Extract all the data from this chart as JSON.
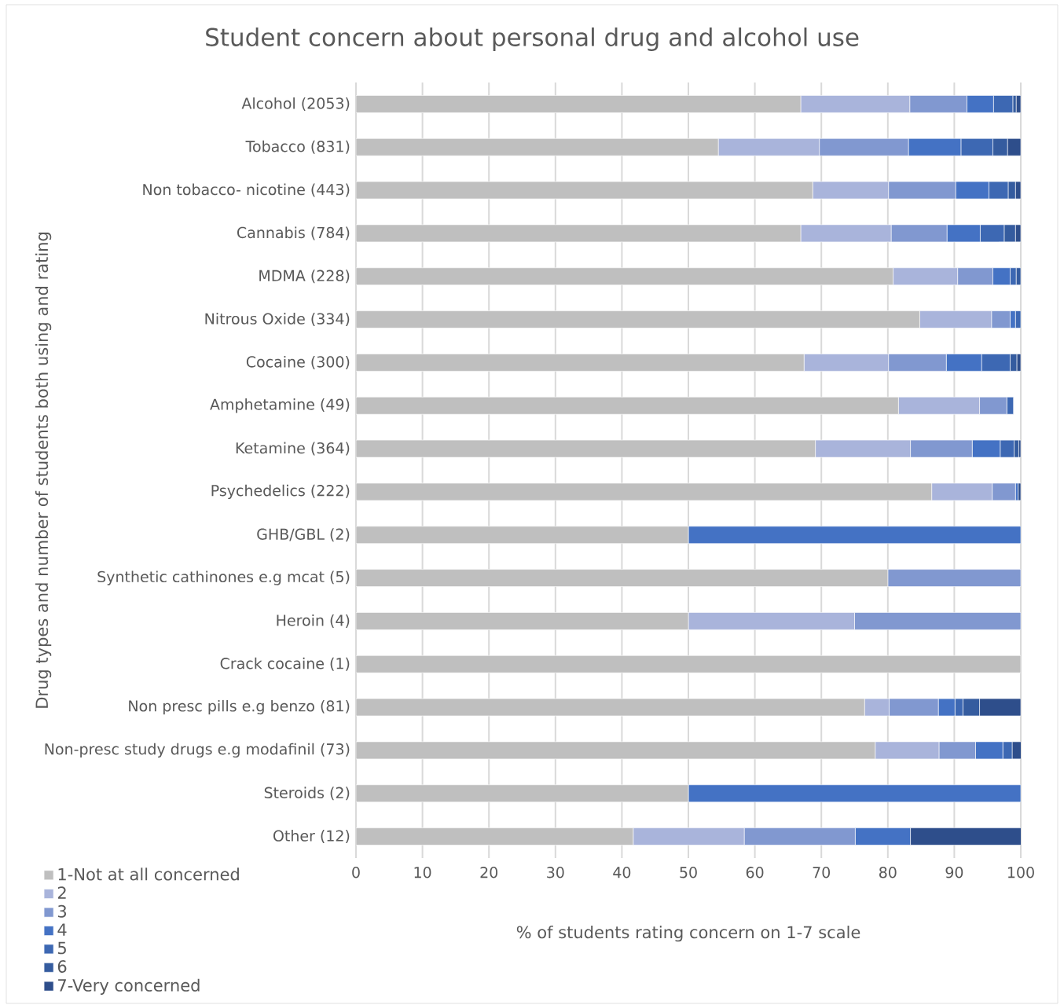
{
  "chart_data": {
    "type": "bar",
    "orientation": "horizontal",
    "stacked": true,
    "title": "Student concern about personal drug and alcohol use",
    "xlabel": "% of students rating concern on 1-7 scale",
    "ylabel": "Drug types  and number of students both using and rating",
    "categories": [
      "Alcohol (2053)",
      "Tobacco (831)",
      "Non tobacco- nicotine (443)",
      "Cannabis (784)",
      "MDMA (228)",
      "Nitrous Oxide (334)",
      "Cocaine (300)",
      "Amphetamine (49)",
      "Ketamine (364)",
      "Psychedelics (222)",
      "GHB/GBL (2)",
      "Synthetic cathinones e.g mcat (5)",
      "Heroin (4)",
      "Crack cocaine (1)",
      "Non presc pills e.g benzo (81)",
      "Non-presc study drugs e.g modafinil (73)",
      "Steroids (2)",
      "Other (12)"
    ],
    "series": [
      {
        "name": "1-Not at all concerned",
        "color": "#bfbfbf",
        "values": [
          66.9,
          54.5,
          68.7,
          66.9,
          80.8,
          84.8,
          67.4,
          81.6,
          69.1,
          86.6,
          50,
          80,
          50,
          100,
          76.5,
          78.1,
          50,
          41.7
        ]
      },
      {
        "name": "2",
        "color": "#a9b4db",
        "values": [
          16.4,
          15.2,
          11.4,
          13.6,
          9.7,
          10.8,
          12.7,
          12.2,
          14.3,
          9.1,
          0,
          0,
          25,
          0,
          3.7,
          9.6,
          0,
          16.7
        ]
      },
      {
        "name": "3",
        "color": "#8198d0",
        "values": [
          8.6,
          13.4,
          10.1,
          8.4,
          5.3,
          2.8,
          8.7,
          4.1,
          9.3,
          3.5,
          0,
          20,
          25,
          0,
          7.4,
          5.5,
          0,
          16.7
        ]
      },
      {
        "name": "4",
        "color": "#4472c4",
        "values": [
          4.0,
          7.9,
          5.0,
          5.0,
          2.6,
          0.8,
          5.3,
          0,
          4.2,
          0.4,
          50,
          0,
          0,
          0,
          2.5,
          4.1,
          50,
          8.3
        ]
      },
      {
        "name": "5",
        "color": "#3d68b3",
        "values": [
          2.9,
          4.8,
          2.9,
          3.6,
          0.9,
          0.8,
          4.3,
          1.0,
          2.1,
          0,
          0,
          0,
          0,
          0,
          1.2,
          1.4,
          0,
          0
        ]
      },
      {
        "name": "6",
        "color": "#355c9f",
        "values": [
          0.5,
          2.2,
          1.1,
          1.7,
          0.7,
          0,
          1.0,
          0,
          0.7,
          0,
          0,
          0,
          0,
          0,
          2.5,
          0,
          0,
          0
        ]
      },
      {
        "name": "7-Very concerned",
        "color": "#2e4e8b",
        "values": [
          0.7,
          2.0,
          0.8,
          0.8,
          0,
          0,
          0.6,
          0,
          0.3,
          0.4,
          0,
          0,
          0,
          0,
          6.2,
          1.4,
          0,
          16.7
        ]
      }
    ],
    "xlim": [
      0,
      100
    ],
    "xticks": [
      0,
      10,
      20,
      30,
      40,
      50,
      60,
      70,
      80,
      90,
      100
    ],
    "grid": "x",
    "legend": "bottom left"
  }
}
